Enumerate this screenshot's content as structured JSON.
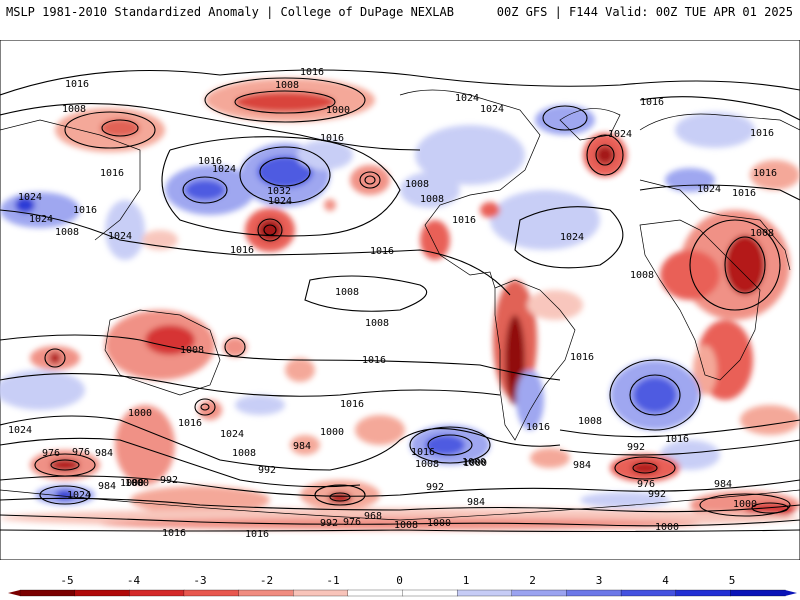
{
  "header": {
    "left_title": "MSLP 1981-2010 Standardized Anomaly | College of DuPage NEXLAB",
    "right_title": "00Z GFS | F144 Valid: 00Z TUE APR 01 2025"
  },
  "map": {
    "projection": "global equirectangular",
    "background": "#ffffff",
    "coastline_color": "#000000",
    "contour_color": "#000000",
    "isobar_labels": [
      "1016",
      "1008",
      "1008",
      "1016",
      "1000",
      "1016",
      "1016",
      "1024",
      "1024",
      "1032",
      "1024",
      "1024",
      "1016",
      "1008",
      "1024",
      "1016",
      "1016",
      "1024",
      "1016",
      "1008",
      "1008",
      "1016",
      "1024",
      "1024",
      "1016",
      "1008",
      "1024",
      "1016",
      "1008",
      "1024",
      "1016",
      "1016",
      "1008",
      "1008",
      "1008",
      "1016",
      "1016",
      "1016",
      "1000",
      "1024",
      "1016",
      "1024",
      "1000",
      "1000",
      "976",
      "984",
      "1008",
      "1000",
      "992",
      "984",
      "1024",
      "1016",
      "1016",
      "1008",
      "992",
      "976",
      "984",
      "1000",
      "1016",
      "1008",
      "1000",
      "992",
      "984",
      "968",
      "992",
      "976",
      "1008",
      "1000",
      "1016",
      "984",
      "992",
      "976",
      "992",
      "1000",
      "1000",
      "1016",
      "984"
    ]
  },
  "colorbar": {
    "ticks": [
      "-5",
      "-4",
      "-3",
      "-2",
      "-1",
      "0",
      "1",
      "2",
      "3",
      "4",
      "5"
    ],
    "bins": [
      "#7a0000",
      "#b00a0a",
      "#d42a2a",
      "#e8584f",
      "#f08c80",
      "#f8c4ba",
      "#ffffff",
      "#ffffff",
      "#c6ccf6",
      "#9aa3f0",
      "#6c78e8",
      "#4452e0",
      "#2230d4",
      "#0a14b8"
    ]
  }
}
